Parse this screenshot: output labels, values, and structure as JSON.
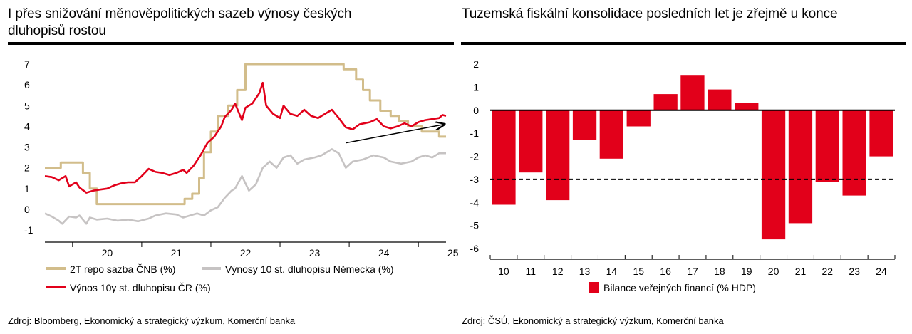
{
  "left": {
    "title_line1": "I přes snižování měnověpolitických sazeb výnosy českých",
    "title_line2": "dluhopisů rostou",
    "source": "Zdroj: Bloomberg, Ekonomický a strategický výzkum, Komerční banka"
  },
  "right": {
    "title": "Tuzemská fiskální konsolidace posledních let je zřejmě u konce",
    "source": "Zdroj: ČSÚ, Ekonomický a strategický výzkum, Komerční banka"
  },
  "chart_data": [
    {
      "type": "line",
      "title": "I přes snižování měnověpolitických sazeb výnosy českých dluhopisů rostou",
      "x_range": [
        2019.6,
        2025.4
      ],
      "ylim": [
        -1,
        7
      ],
      "y_ticks": [
        7,
        6,
        5,
        4,
        3,
        2,
        1,
        0,
        -1
      ],
      "x_ticks": [
        "20",
        "21",
        "22",
        "23",
        "24",
        "25"
      ],
      "colors": {
        "repo": "#d2bd8b",
        "de10y": "#c6c3c3",
        "cz10y": "#e2001a"
      },
      "legend": [
        "2T repo sazba ČNB (%)",
        "Výnosy 10 st. dluhopisu Německa (%)",
        "Výnos 10y st. dluhopisu ČR (%)"
      ],
      "annotation": "rising trend arrow from late 2023 to 2025",
      "series": [
        {
          "name": "2T repo sazba ČNB (%)",
          "step": true,
          "points": [
            [
              2019.6,
              2.0
            ],
            [
              2019.83,
              2.0
            ],
            [
              2019.83,
              2.25
            ],
            [
              2020.15,
              2.25
            ],
            [
              2020.15,
              1.75
            ],
            [
              2020.25,
              1.75
            ],
            [
              2020.25,
              1.0
            ],
            [
              2020.35,
              1.0
            ],
            [
              2020.35,
              0.25
            ],
            [
              2021.0,
              0.25
            ],
            [
              2021.62,
              0.25
            ],
            [
              2021.62,
              0.5
            ],
            [
              2021.73,
              0.5
            ],
            [
              2021.73,
              0.75
            ],
            [
              2021.83,
              0.75
            ],
            [
              2021.83,
              1.5
            ],
            [
              2021.9,
              1.5
            ],
            [
              2021.9,
              2.75
            ],
            [
              2022.0,
              2.75
            ],
            [
              2022.0,
              3.75
            ],
            [
              2022.1,
              3.75
            ],
            [
              2022.1,
              4.5
            ],
            [
              2022.25,
              4.5
            ],
            [
              2022.25,
              5.0
            ],
            [
              2022.38,
              5.0
            ],
            [
              2022.38,
              5.75
            ],
            [
              2022.5,
              5.75
            ],
            [
              2022.5,
              7.0
            ],
            [
              2023.92,
              7.0
            ],
            [
              2023.92,
              6.75
            ],
            [
              2024.1,
              6.75
            ],
            [
              2024.1,
              6.25
            ],
            [
              2024.2,
              6.25
            ],
            [
              2024.2,
              5.75
            ],
            [
              2024.3,
              5.75
            ],
            [
              2024.3,
              5.25
            ],
            [
              2024.45,
              5.25
            ],
            [
              2024.45,
              4.75
            ],
            [
              2024.6,
              4.75
            ],
            [
              2024.6,
              4.5
            ],
            [
              2024.72,
              4.5
            ],
            [
              2024.72,
              4.25
            ],
            [
              2024.85,
              4.25
            ],
            [
              2024.85,
              4.0
            ],
            [
              2025.05,
              4.0
            ],
            [
              2025.05,
              3.75
            ],
            [
              2025.3,
              3.75
            ],
            [
              2025.3,
              3.5
            ],
            [
              2025.4,
              3.5
            ]
          ]
        },
        {
          "name": "Výnosy 10 st. dluhopisu Německa (%)",
          "points": [
            [
              2019.6,
              -0.2
            ],
            [
              2019.7,
              -0.35
            ],
            [
              2019.8,
              -0.55
            ],
            [
              2019.85,
              -0.7
            ],
            [
              2019.95,
              -0.35
            ],
            [
              2020.05,
              -0.4
            ],
            [
              2020.1,
              -0.3
            ],
            [
              2020.2,
              -0.7
            ],
            [
              2020.25,
              -0.4
            ],
            [
              2020.35,
              -0.5
            ],
            [
              2020.5,
              -0.45
            ],
            [
              2020.65,
              -0.55
            ],
            [
              2020.8,
              -0.5
            ],
            [
              2020.95,
              -0.58
            ],
            [
              2021.1,
              -0.45
            ],
            [
              2021.2,
              -0.3
            ],
            [
              2021.35,
              -0.2
            ],
            [
              2021.5,
              -0.25
            ],
            [
              2021.6,
              -0.4
            ],
            [
              2021.7,
              -0.3
            ],
            [
              2021.8,
              -0.2
            ],
            [
              2021.9,
              -0.3
            ],
            [
              2022.0,
              -0.05
            ],
            [
              2022.1,
              0.1
            ],
            [
              2022.2,
              0.55
            ],
            [
              2022.3,
              0.9
            ],
            [
              2022.35,
              1.0
            ],
            [
              2022.45,
              1.6
            ],
            [
              2022.55,
              0.9
            ],
            [
              2022.65,
              1.2
            ],
            [
              2022.75,
              2.0
            ],
            [
              2022.85,
              2.3
            ],
            [
              2022.95,
              2.0
            ],
            [
              2023.05,
              2.5
            ],
            [
              2023.15,
              2.6
            ],
            [
              2023.25,
              2.2
            ],
            [
              2023.35,
              2.4
            ],
            [
              2023.5,
              2.5
            ],
            [
              2023.6,
              2.6
            ],
            [
              2023.75,
              2.9
            ],
            [
              2023.85,
              2.7
            ],
            [
              2023.95,
              2.0
            ],
            [
              2024.05,
              2.3
            ],
            [
              2024.2,
              2.4
            ],
            [
              2024.35,
              2.6
            ],
            [
              2024.5,
              2.5
            ],
            [
              2024.6,
              2.3
            ],
            [
              2024.75,
              2.2
            ],
            [
              2024.9,
              2.3
            ],
            [
              2025.0,
              2.5
            ],
            [
              2025.1,
              2.6
            ],
            [
              2025.2,
              2.5
            ],
            [
              2025.3,
              2.7
            ],
            [
              2025.4,
              2.7
            ]
          ]
        },
        {
          "name": "Výnos 10y st. dluhopisu ČR (%)",
          "points": [
            [
              2019.6,
              1.6
            ],
            [
              2019.7,
              1.55
            ],
            [
              2019.8,
              1.4
            ],
            [
              2019.9,
              1.6
            ],
            [
              2019.95,
              1.1
            ],
            [
              2020.05,
              1.3
            ],
            [
              2020.1,
              1.05
            ],
            [
              2020.2,
              0.8
            ],
            [
              2020.3,
              0.9
            ],
            [
              2020.4,
              0.95
            ],
            [
              2020.5,
              1.0
            ],
            [
              2020.6,
              1.15
            ],
            [
              2020.7,
              1.25
            ],
            [
              2020.8,
              1.3
            ],
            [
              2020.9,
              1.3
            ],
            [
              2021.0,
              1.6
            ],
            [
              2021.1,
              1.95
            ],
            [
              2021.2,
              1.8
            ],
            [
              2021.3,
              1.75
            ],
            [
              2021.4,
              1.65
            ],
            [
              2021.5,
              1.75
            ],
            [
              2021.6,
              1.9
            ],
            [
              2021.65,
              1.75
            ],
            [
              2021.75,
              2.1
            ],
            [
              2021.85,
              2.6
            ],
            [
              2021.95,
              3.2
            ],
            [
              2022.05,
              3.5
            ],
            [
              2022.15,
              4.0
            ],
            [
              2022.2,
              4.45
            ],
            [
              2022.3,
              4.8
            ],
            [
              2022.35,
              5.1
            ],
            [
              2022.45,
              4.3
            ],
            [
              2022.5,
              4.9
            ],
            [
              2022.6,
              5.1
            ],
            [
              2022.7,
              5.6
            ],
            [
              2022.75,
              6.1
            ],
            [
              2022.8,
              5.0
            ],
            [
              2022.9,
              4.6
            ],
            [
              2023.0,
              4.4
            ],
            [
              2023.05,
              5.0
            ],
            [
              2023.15,
              4.6
            ],
            [
              2023.25,
              4.5
            ],
            [
              2023.35,
              4.8
            ],
            [
              2023.45,
              4.5
            ],
            [
              2023.55,
              4.4
            ],
            [
              2023.65,
              4.6
            ],
            [
              2023.75,
              4.8
            ],
            [
              2023.85,
              4.4
            ],
            [
              2023.95,
              3.95
            ],
            [
              2024.05,
              3.85
            ],
            [
              2024.15,
              4.1
            ],
            [
              2024.3,
              4.2
            ],
            [
              2024.4,
              4.35
            ],
            [
              2024.5,
              4.0
            ],
            [
              2024.6,
              3.9
            ],
            [
              2024.7,
              4.0
            ],
            [
              2024.8,
              4.15
            ],
            [
              2024.9,
              4.0
            ],
            [
              2025.0,
              4.2
            ],
            [
              2025.1,
              4.3
            ],
            [
              2025.2,
              4.35
            ],
            [
              2025.3,
              4.4
            ],
            [
              2025.35,
              4.55
            ],
            [
              2025.4,
              4.5
            ]
          ]
        }
      ]
    },
    {
      "type": "bar",
      "title": "Tuzemská fiskální konsolidace posledních let je zřejmě u konce",
      "categories": [
        "10",
        "11",
        "12",
        "13",
        "14",
        "15",
        "16",
        "17",
        "18",
        "19",
        "20",
        "21",
        "22",
        "23",
        "24"
      ],
      "series": [
        {
          "name": "Bilance veřejných financí (% HDP)",
          "values": [
            -4.1,
            -2.7,
            -3.9,
            -1.3,
            -2.1,
            -0.7,
            0.7,
            1.5,
            0.9,
            0.3,
            -5.6,
            -4.9,
            -3.1,
            -3.7,
            -2.0
          ],
          "color": "#e2001a"
        }
      ],
      "reference_line": -3,
      "ylim": [
        -6,
        2
      ],
      "y_ticks": [
        2,
        1,
        0,
        -1,
        -2,
        -3,
        -4,
        -5,
        -6
      ],
      "legend": "Bilance veřejných financí (% HDP)"
    }
  ]
}
